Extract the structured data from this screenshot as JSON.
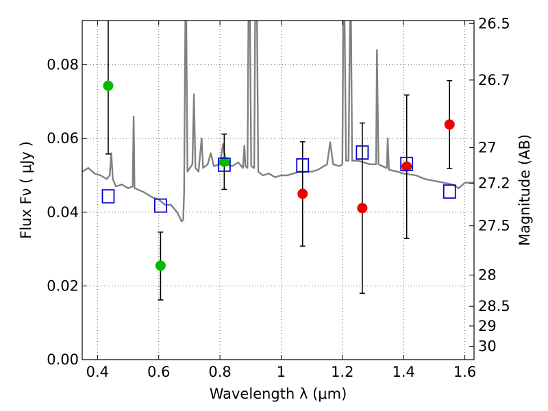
{
  "chart_data": {
    "type": "scatter",
    "title": "",
    "xlabel": "Wavelength  λ (μm)",
    "ylabel": "Flux  Fν  ( μJy )",
    "y2label": "Magnitude (AB)",
    "xlim": [
      0.35,
      1.63
    ],
    "ylim": [
      0.0,
      0.092
    ],
    "grid": true,
    "x_ticks": [
      0.4,
      0.6,
      0.8,
      1.0,
      1.2,
      1.4,
      1.6
    ],
    "x_tick_labels": [
      "0.4",
      "0.6",
      "0.8",
      "1",
      "1.2",
      "1.4",
      "1.6"
    ],
    "y_ticks": [
      0.0,
      0.02,
      0.04,
      0.06,
      0.08
    ],
    "y_tick_labels": [
      "0.00",
      "0.02",
      "0.04",
      "0.06",
      "0.08"
    ],
    "mag_ticks": [
      26.5,
      26.7,
      27.0,
      27.2,
      27.5,
      28.0,
      28.5,
      29.0,
      30.0
    ],
    "mag_tick_labels": [
      "26.5",
      "26.7",
      "27",
      "27.2",
      "27.5",
      "28",
      "28.5",
      "29",
      "30"
    ],
    "colors": {
      "model": "#808080",
      "green": "#00bb00",
      "red": "#ee0000",
      "square": "#0000cc",
      "errorbar": "#000000"
    },
    "series": [
      {
        "marker": "circle",
        "color": "green",
        "points": [
          {
            "x": 0.435,
            "y": 0.0743,
            "yerr_low": 0.0558,
            "yerr_high": 0.093
          },
          {
            "x": 0.606,
            "y": 0.0255,
            "yerr_low": 0.0162,
            "yerr_high": 0.0346
          },
          {
            "x": 0.814,
            "y": 0.0537,
            "yerr_low": 0.0462,
            "yerr_high": 0.0612
          }
        ]
      },
      {
        "marker": "circle",
        "color": "red",
        "points": [
          {
            "x": 1.07,
            "y": 0.045,
            "yerr_low": 0.0308,
            "yerr_high": 0.0591
          },
          {
            "x": 1.265,
            "y": 0.0411,
            "yerr_low": 0.018,
            "yerr_high": 0.0642
          },
          {
            "x": 1.41,
            "y": 0.0524,
            "yerr_low": 0.0329,
            "yerr_high": 0.0718
          },
          {
            "x": 1.55,
            "y": 0.0638,
            "yerr_low": 0.0519,
            "yerr_high": 0.0757
          }
        ]
      },
      {
        "marker": "square",
        "color": "square",
        "points": [
          {
            "x": 0.435,
            "y": 0.0443
          },
          {
            "x": 0.606,
            "y": 0.0418
          },
          {
            "x": 0.814,
            "y": 0.0529
          },
          {
            "x": 1.07,
            "y": 0.0527
          },
          {
            "x": 1.265,
            "y": 0.0562
          },
          {
            "x": 1.41,
            "y": 0.0531
          },
          {
            "x": 1.55,
            "y": 0.0456
          }
        ]
      }
    ],
    "model_spectrum": [
      [
        0.35,
        0.051
      ],
      [
        0.37,
        0.052
      ],
      [
        0.39,
        0.0505
      ],
      [
        0.41,
        0.05
      ],
      [
        0.43,
        0.049
      ],
      [
        0.44,
        0.05
      ],
      [
        0.445,
        0.056
      ],
      [
        0.45,
        0.049
      ],
      [
        0.46,
        0.047
      ],
      [
        0.48,
        0.0475
      ],
      [
        0.5,
        0.0465
      ],
      [
        0.515,
        0.047
      ],
      [
        0.518,
        0.066
      ],
      [
        0.521,
        0.0465
      ],
      [
        0.55,
        0.0455
      ],
      [
        0.58,
        0.044
      ],
      [
        0.6,
        0.0435
      ],
      [
        0.62,
        0.042
      ],
      [
        0.64,
        0.042
      ],
      [
        0.66,
        0.04
      ],
      [
        0.675,
        0.0375
      ],
      [
        0.68,
        0.038
      ],
      [
        0.683,
        0.0455
      ],
      [
        0.687,
        0.093
      ],
      [
        0.69,
        0.093
      ],
      [
        0.694,
        0.051
      ],
      [
        0.71,
        0.053
      ],
      [
        0.715,
        0.072
      ],
      [
        0.72,
        0.052
      ],
      [
        0.73,
        0.051
      ],
      [
        0.74,
        0.06
      ],
      [
        0.745,
        0.052
      ],
      [
        0.76,
        0.053
      ],
      [
        0.77,
        0.056
      ],
      [
        0.78,
        0.0525
      ],
      [
        0.8,
        0.053
      ],
      [
        0.81,
        0.0585
      ],
      [
        0.82,
        0.053
      ],
      [
        0.84,
        0.0525
      ],
      [
        0.86,
        0.0535
      ],
      [
        0.875,
        0.052
      ],
      [
        0.88,
        0.058
      ],
      [
        0.883,
        0.0525
      ],
      [
        0.89,
        0.052
      ],
      [
        0.893,
        0.093
      ],
      [
        0.898,
        0.093
      ],
      [
        0.902,
        0.0525
      ],
      [
        0.912,
        0.052
      ],
      [
        0.915,
        0.093
      ],
      [
        0.921,
        0.093
      ],
      [
        0.925,
        0.051
      ],
      [
        0.94,
        0.05
      ],
      [
        0.96,
        0.0505
      ],
      [
        0.98,
        0.0495
      ],
      [
        1.0,
        0.05
      ],
      [
        1.02,
        0.05
      ],
      [
        1.04,
        0.0505
      ],
      [
        1.06,
        0.051
      ],
      [
        1.08,
        0.051
      ],
      [
        1.1,
        0.051
      ],
      [
        1.12,
        0.0515
      ],
      [
        1.15,
        0.053
      ],
      [
        1.16,
        0.059
      ],
      [
        1.17,
        0.053
      ],
      [
        1.19,
        0.0525
      ],
      [
        1.2,
        0.053
      ],
      [
        1.203,
        0.093
      ],
      [
        1.207,
        0.093
      ],
      [
        1.212,
        0.054
      ],
      [
        1.22,
        0.054
      ],
      [
        1.225,
        0.093
      ],
      [
        1.228,
        0.093
      ],
      [
        1.232,
        0.054
      ],
      [
        1.25,
        0.054
      ],
      [
        1.27,
        0.0535
      ],
      [
        1.29,
        0.053
      ],
      [
        1.31,
        0.053
      ],
      [
        1.313,
        0.084
      ],
      [
        1.318,
        0.053
      ],
      [
        1.33,
        0.0525
      ],
      [
        1.345,
        0.052
      ],
      [
        1.348,
        0.06
      ],
      [
        1.352,
        0.0515
      ],
      [
        1.38,
        0.051
      ],
      [
        1.4,
        0.0505
      ],
      [
        1.44,
        0.05
      ],
      [
        1.47,
        0.049
      ],
      [
        1.5,
        0.0485
      ],
      [
        1.53,
        0.048
      ],
      [
        1.56,
        0.0475
      ],
      [
        1.58,
        0.0465
      ],
      [
        1.6,
        0.048
      ],
      [
        1.63,
        0.048
      ]
    ]
  }
}
